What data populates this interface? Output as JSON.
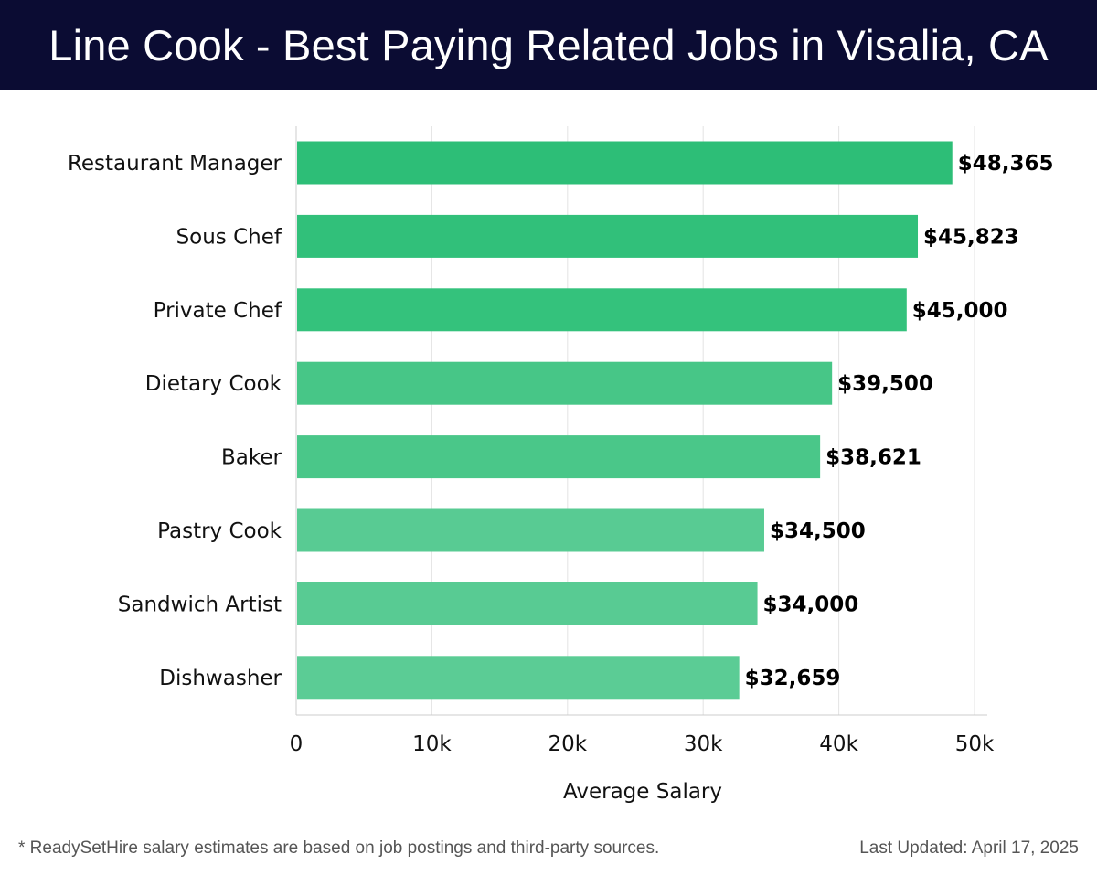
{
  "header": {
    "title": "Line Cook - Best Paying Related Jobs in Visalia, CA"
  },
  "chart_data": {
    "type": "bar",
    "orientation": "horizontal",
    "categories": [
      "Restaurant Manager",
      "Sous Chef",
      "Private Chef",
      "Dietary Cook",
      "Baker",
      "Pastry Cook",
      "Sandwich Artist",
      "Dishwasher"
    ],
    "values": [
      48365,
      45823,
      45000,
      39500,
      38621,
      34500,
      34000,
      32659
    ],
    "value_labels": [
      "$48,365",
      "$45,823",
      "$45,000",
      "$39,500",
      "$38,621",
      "$34,500",
      "$34,000",
      "$32,659"
    ],
    "bar_colors": [
      "#2dbe77",
      "#31c07a",
      "#34c27c",
      "#47c687",
      "#4ac789",
      "#58cb93",
      "#58cb93",
      "#5bcc95"
    ],
    "xlabel": "Average Salary",
    "xlim": [
      0,
      50000
    ],
    "ticks": [
      0,
      10000,
      20000,
      30000,
      40000,
      50000
    ],
    "tick_labels": [
      "0",
      "10k",
      "20k",
      "30k",
      "40k",
      "50k"
    ],
    "grid": true
  },
  "footer": {
    "note": "* ReadySetHire salary estimates are based on job postings and third-party sources.",
    "updated": "Last Updated: April 17, 2025"
  },
  "colors": {
    "header_bg": "#0b0c33",
    "grid": "#e3e3e3"
  }
}
